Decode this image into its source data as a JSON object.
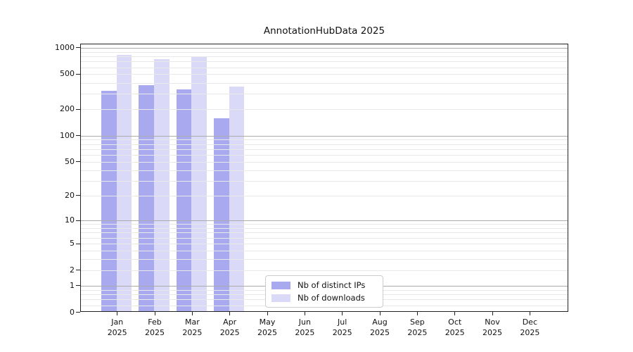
{
  "title": "AnnotationHubData 2025",
  "legend": {
    "items": [
      {
        "label": "Nb of distinct IPs",
        "color": "#a9a9f0"
      },
      {
        "label": "Nb of downloads",
        "color": "#dadaf8"
      }
    ]
  },
  "axes": {
    "x_months": [
      "Jan",
      "Feb",
      "Mar",
      "Apr",
      "May",
      "Jun",
      "Jul",
      "Aug",
      "Sep",
      "Oct",
      "Nov",
      "Dec"
    ],
    "x_year": "2025"
  },
  "colors": {
    "major_grid": "#ababab",
    "minor_grid": "#e8e8e8",
    "axis": "#222222",
    "legend_border": "#cccccc"
  },
  "chart_data": {
    "type": "bar",
    "title": "AnnotationHubData 2025",
    "categories": [
      "Jan 2025",
      "Feb 2025",
      "Mar 2025",
      "Apr 2025",
      "May 2025",
      "Jun 2025",
      "Jul 2025",
      "Aug 2025",
      "Sep 2025",
      "Oct 2025",
      "Nov 2025",
      "Dec 2025"
    ],
    "series": [
      {
        "name": "Nb of distinct IPs",
        "color": "#a9a9f0",
        "values": [
          320,
          370,
          335,
          155,
          null,
          null,
          null,
          null,
          null,
          null,
          null,
          null
        ]
      },
      {
        "name": "Nb of downloads",
        "color": "#dadaf8",
        "values": [
          820,
          730,
          780,
          360,
          null,
          null,
          null,
          null,
          null,
          null,
          null,
          null
        ]
      }
    ],
    "xlabel": "",
    "ylabel": "",
    "yscale": "symlog (position ~ log10(1+v))",
    "yticks": [
      0,
      1,
      2,
      5,
      10,
      20,
      50,
      100,
      200,
      500,
      1000
    ],
    "ylim": [
      0,
      1100
    ],
    "grid": "horizontal; dark lines at powers of 10, light minor lines drawn above bars",
    "legend_position": "inside bottom-center"
  }
}
